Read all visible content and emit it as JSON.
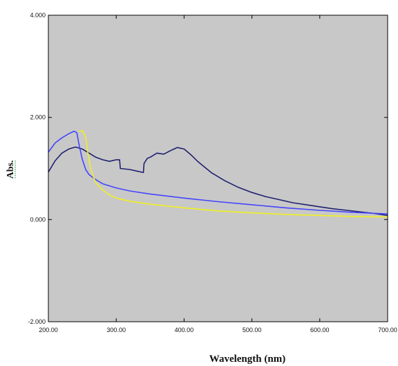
{
  "chart_data": {
    "type": "line",
    "xlabel": "Wavelength (nm)",
    "ylabel": "Abs.",
    "xlim": [
      200,
      700
    ],
    "ylim": [
      -2,
      4
    ],
    "x_ticks": [
      200,
      300,
      400,
      500,
      600,
      700
    ],
    "x_tick_labels": [
      "200.00",
      "300.00",
      "400.00",
      "500.00",
      "600.00",
      "700.00"
    ],
    "y_ticks": [
      -2,
      0,
      2,
      4
    ],
    "y_tick_labels": [
      "-2.000",
      "0.000",
      "2.000",
      "4.000"
    ],
    "grid": false,
    "plot_background": "#c8c8c8",
    "series": [
      {
        "color": "#1f1f70",
        "x": [
          200,
          210,
          220,
          230,
          240,
          250,
          260,
          270,
          280,
          290,
          300,
          305,
          306,
          320,
          330,
          340,
          341,
          346,
          350,
          360,
          370,
          380,
          390,
          400,
          410,
          420,
          440,
          460,
          480,
          500,
          520,
          540,
          560,
          580,
          600,
          620,
          640,
          660,
          680,
          700
        ],
        "y": [
          0.93,
          1.15,
          1.3,
          1.38,
          1.42,
          1.38,
          1.3,
          1.22,
          1.17,
          1.14,
          1.17,
          1.17,
          1.0,
          0.98,
          0.95,
          0.92,
          1.1,
          1.2,
          1.22,
          1.3,
          1.28,
          1.35,
          1.41,
          1.38,
          1.27,
          1.14,
          0.92,
          0.76,
          0.63,
          0.53,
          0.45,
          0.39,
          0.33,
          0.29,
          0.25,
          0.21,
          0.18,
          0.15,
          0.12,
          0.08
        ]
      },
      {
        "color": "#4444ff",
        "x": [
          200,
          210,
          220,
          230,
          238,
          242,
          245,
          250,
          255,
          260,
          270,
          280,
          300,
          320,
          350,
          400,
          450,
          500,
          550,
          600,
          650,
          700
        ],
        "y": [
          1.32,
          1.5,
          1.6,
          1.68,
          1.73,
          1.7,
          1.48,
          1.18,
          0.98,
          0.88,
          0.78,
          0.7,
          0.62,
          0.56,
          0.5,
          0.42,
          0.35,
          0.29,
          0.23,
          0.18,
          0.14,
          0.11
        ]
      },
      {
        "color": "#f0f020",
        "x": [
          245,
          250,
          255,
          258,
          262,
          266,
          270,
          280,
          290,
          300,
          320,
          350,
          400,
          450,
          500,
          550,
          600,
          650,
          700
        ],
        "y": [
          1.73,
          1.74,
          1.62,
          1.32,
          1.02,
          0.85,
          0.72,
          0.58,
          0.48,
          0.42,
          0.36,
          0.3,
          0.23,
          0.17,
          0.13,
          0.1,
          0.08,
          0.06,
          0.05
        ]
      }
    ]
  }
}
